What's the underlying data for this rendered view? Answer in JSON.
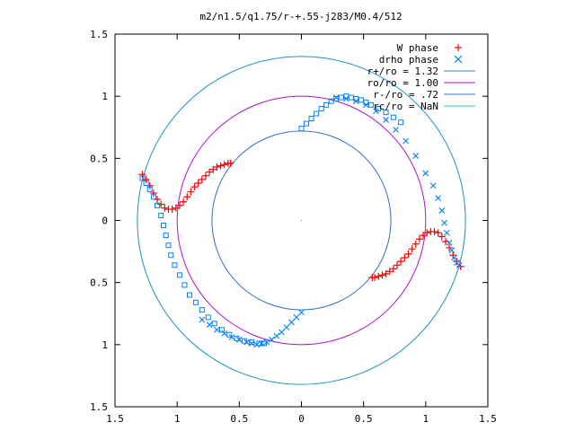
{
  "chart_data": {
    "type": "scatter",
    "title": "m2/n1.5/q1.75/r-+.55-j283/M0.4/512",
    "xlabel": "",
    "ylabel": "",
    "xlim": [
      -1.5,
      1.5
    ],
    "ylim": [
      -1.5,
      1.5
    ],
    "x_tick_labels": [
      "1.5",
      "1",
      "0.5",
      "0",
      "0.5",
      "1",
      "1.5"
    ],
    "y_tick_labels": [
      "1.5",
      "1",
      "0.5",
      "0",
      "0.5",
      "1",
      "1.5"
    ],
    "grid": false,
    "legend_position": "top-right",
    "legend": [
      {
        "label": "W phase",
        "marker": "plus",
        "color": "#ff0000"
      },
      {
        "label": "drho phase",
        "marker": "cross",
        "color": "#0080ff"
      },
      {
        "label": "r+/ro = 1.32",
        "marker": "line",
        "color": "#1f8fc8"
      },
      {
        "label": "ro/ro = 1.00",
        "marker": "line",
        "color": "#b010c8"
      },
      {
        "label": "r-/ro = .72",
        "marker": "line",
        "color": "#2f6fc8"
      },
      {
        "label": "rc/ro = NaN",
        "marker": "line",
        "color": "#10c8d8"
      }
    ],
    "circles": [
      {
        "name": "r+/ro",
        "radius": 1.32,
        "color": "#1f8fc8"
      },
      {
        "name": "ro/ro",
        "radius": 1.0,
        "color": "#b010c8"
      },
      {
        "name": "r-/ro",
        "radius": 0.72,
        "color": "#2f6fc8"
      }
    ],
    "w_phase_series": [
      {
        "x": [
          -1.28,
          -1.25,
          -1.22,
          -1.19,
          -1.16,
          -1.13,
          -1.1,
          -1.07,
          -1.04,
          -1.01,
          -0.98,
          -0.95,
          -0.92,
          -0.89,
          -0.86,
          -0.83,
          -0.8,
          -0.77,
          -0.74,
          -0.71,
          -0.68,
          -0.65,
          -0.62,
          -0.59,
          -0.57
        ],
        "y": [
          0.37,
          0.33,
          0.28,
          0.22,
          0.17,
          0.13,
          0.1,
          0.09,
          0.09,
          0.1,
          0.12,
          0.15,
          0.19,
          0.23,
          0.27,
          0.3,
          0.33,
          0.36,
          0.39,
          0.41,
          0.43,
          0.44,
          0.45,
          0.46,
          0.46
        ]
      },
      {
        "x": [
          1.28,
          1.25,
          1.22,
          1.19,
          1.16,
          1.13,
          1.1,
          1.07,
          1.04,
          1.01,
          0.98,
          0.95,
          0.92,
          0.89,
          0.86,
          0.83,
          0.8,
          0.77,
          0.74,
          0.71,
          0.68,
          0.65,
          0.62,
          0.59,
          0.57
        ],
        "y": [
          -0.37,
          -0.33,
          -0.28,
          -0.22,
          -0.17,
          -0.13,
          -0.1,
          -0.09,
          -0.09,
          -0.1,
          -0.12,
          -0.15,
          -0.19,
          -0.23,
          -0.27,
          -0.3,
          -0.33,
          -0.36,
          -0.39,
          -0.41,
          -0.43,
          -0.44,
          -0.45,
          -0.46,
          -0.46
        ]
      }
    ],
    "drho_phase_cross_series": [
      {
        "x": [
          -0.28,
          -0.24,
          -0.2,
          -0.16,
          -0.12,
          -0.08,
          -0.04,
          0.0,
          -0.32,
          -0.36,
          -0.4,
          -0.44,
          -0.5,
          -0.56,
          -0.62,
          -0.68,
          -0.74,
          -0.8
        ],
        "y": [
          -0.98,
          -0.96,
          -0.93,
          -0.9,
          -0.86,
          -0.82,
          -0.78,
          -0.74,
          -0.99,
          -1.0,
          -0.99,
          -0.98,
          -0.96,
          -0.94,
          -0.91,
          -0.88,
          -0.84,
          -0.8
        ]
      },
      {
        "x": [
          0.28,
          0.36,
          0.44,
          0.52,
          0.6,
          0.68,
          0.76,
          0.84,
          0.92,
          1.0,
          1.06,
          1.1,
          1.13,
          1.15,
          1.17,
          1.19,
          1.21,
          1.23,
          1.25,
          1.27
        ],
        "y": [
          0.99,
          0.98,
          0.96,
          0.93,
          0.88,
          0.81,
          0.73,
          0.64,
          0.52,
          0.38,
          0.28,
          0.18,
          0.08,
          -0.02,
          -0.1,
          -0.18,
          -0.24,
          -0.3,
          -0.34,
          -0.36
        ]
      }
    ],
    "drho_phase_square_series": [
      {
        "x": [
          -1.28,
          -1.25,
          -1.22,
          -1.19,
          -1.16,
          -1.13,
          -1.11,
          -1.09,
          -1.07,
          -1.05,
          -1.02,
          -0.98,
          -0.94,
          -0.9,
          -0.85,
          -0.8,
          -0.75,
          -0.7,
          -0.64,
          -0.58,
          -0.52,
          -0.46,
          -0.4,
          -0.34,
          -0.3
        ],
        "y": [
          0.34,
          0.3,
          0.25,
          0.19,
          0.12,
          0.04,
          -0.04,
          -0.12,
          -0.2,
          -0.28,
          -0.36,
          -0.44,
          -0.52,
          -0.6,
          -0.66,
          -0.72,
          -0.78,
          -0.83,
          -0.88,
          -0.92,
          -0.95,
          -0.97,
          -0.98,
          -0.99,
          -0.99
        ]
      },
      {
        "x": [
          0.0,
          0.04,
          0.08,
          0.12,
          0.16,
          0.2,
          0.24,
          0.28,
          0.32,
          0.36,
          0.4,
          0.44,
          0.48,
          0.52,
          0.56,
          0.62,
          0.68,
          0.74,
          0.8
        ],
        "y": [
          0.74,
          0.78,
          0.82,
          0.86,
          0.9,
          0.93,
          0.96,
          0.98,
          0.99,
          1.0,
          0.99,
          0.98,
          0.97,
          0.95,
          0.93,
          0.9,
          0.87,
          0.83,
          0.79
        ]
      }
    ]
  }
}
